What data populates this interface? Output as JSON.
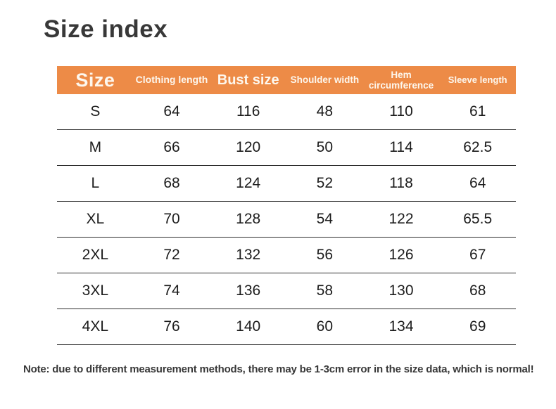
{
  "page": {
    "title": "Size index",
    "note": "Note: due to different measurement methods, there may be 1-3cm error in the size data, which is normal!"
  },
  "colors": {
    "header_bg": "#ED8B47",
    "header_text": "#FDF7EE",
    "title_text": "#383838",
    "body_text": "#1C1C1C",
    "row_line": "#2E2E2E"
  },
  "table": {
    "columns": [
      "Size",
      "Clothing length",
      "Bust size",
      "Shoulder width",
      "Hem circumference",
      "Sleeve length"
    ],
    "rows": [
      [
        "S",
        "64",
        "116",
        "48",
        "110",
        "61"
      ],
      [
        "M",
        "66",
        "120",
        "50",
        "114",
        "62.5"
      ],
      [
        "L",
        "68",
        "124",
        "52",
        "118",
        "64"
      ],
      [
        "XL",
        "70",
        "128",
        "54",
        "122",
        "65.5"
      ],
      [
        "2XL",
        "72",
        "132",
        "56",
        "126",
        "67"
      ],
      [
        "3XL",
        "74",
        "136",
        "58",
        "130",
        "68"
      ],
      [
        "4XL",
        "76",
        "140",
        "60",
        "134",
        "69"
      ]
    ]
  }
}
